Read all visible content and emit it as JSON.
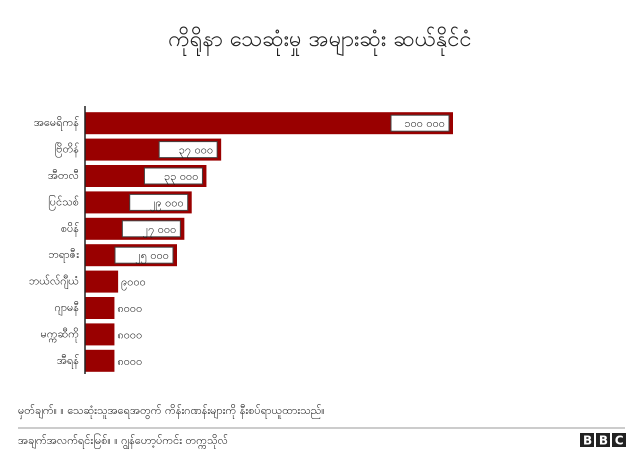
{
  "chart_data": {
    "type": "bar",
    "orientation": "horizontal",
    "title": "ကိုရိုနာ သေဆုံးမှု အများဆုံး ဆယ်နိုင်ငံ",
    "categories": [
      "အမေရိကန်",
      "ဗြိတိန်",
      "အီတလီ",
      "ပြင်သစ်",
      "စပိန်",
      "ဘရာဇီး",
      "ဘယ်လ်ဂျီယံ",
      "ဂျာမနီ",
      "မက္ကဆီကို",
      "အီရန်"
    ],
    "values": [
      100000,
      37000,
      33000,
      29000,
      27000,
      25000,
      9000,
      8000,
      8000,
      8000
    ],
    "value_labels": [
      "၁၀၀ ၀၀၀",
      "၃၇ ၀၀၀",
      "၃၃ ၀၀၀",
      "၂၉ ၀၀၀",
      "၂၇ ၀၀၀",
      "၂၅ ၀၀၀",
      "၉၀၀၀",
      "၈၀၀၀",
      "၈၀၀၀",
      "၈၀၀၀"
    ],
    "color": "#990000",
    "note": "မှတ်ချက်။ ။ သေဆုံးသူအရေအတွက် ကိန်းဂဏန်းများကို နီးစပ်ရာယူထားသည်။",
    "source": "အချက်အလက်ရင်းမြစ်။ ။ ဂျွန်ဟော့ပ်ကင်း တက္ကသိုလ်",
    "brand": "BBC"
  }
}
